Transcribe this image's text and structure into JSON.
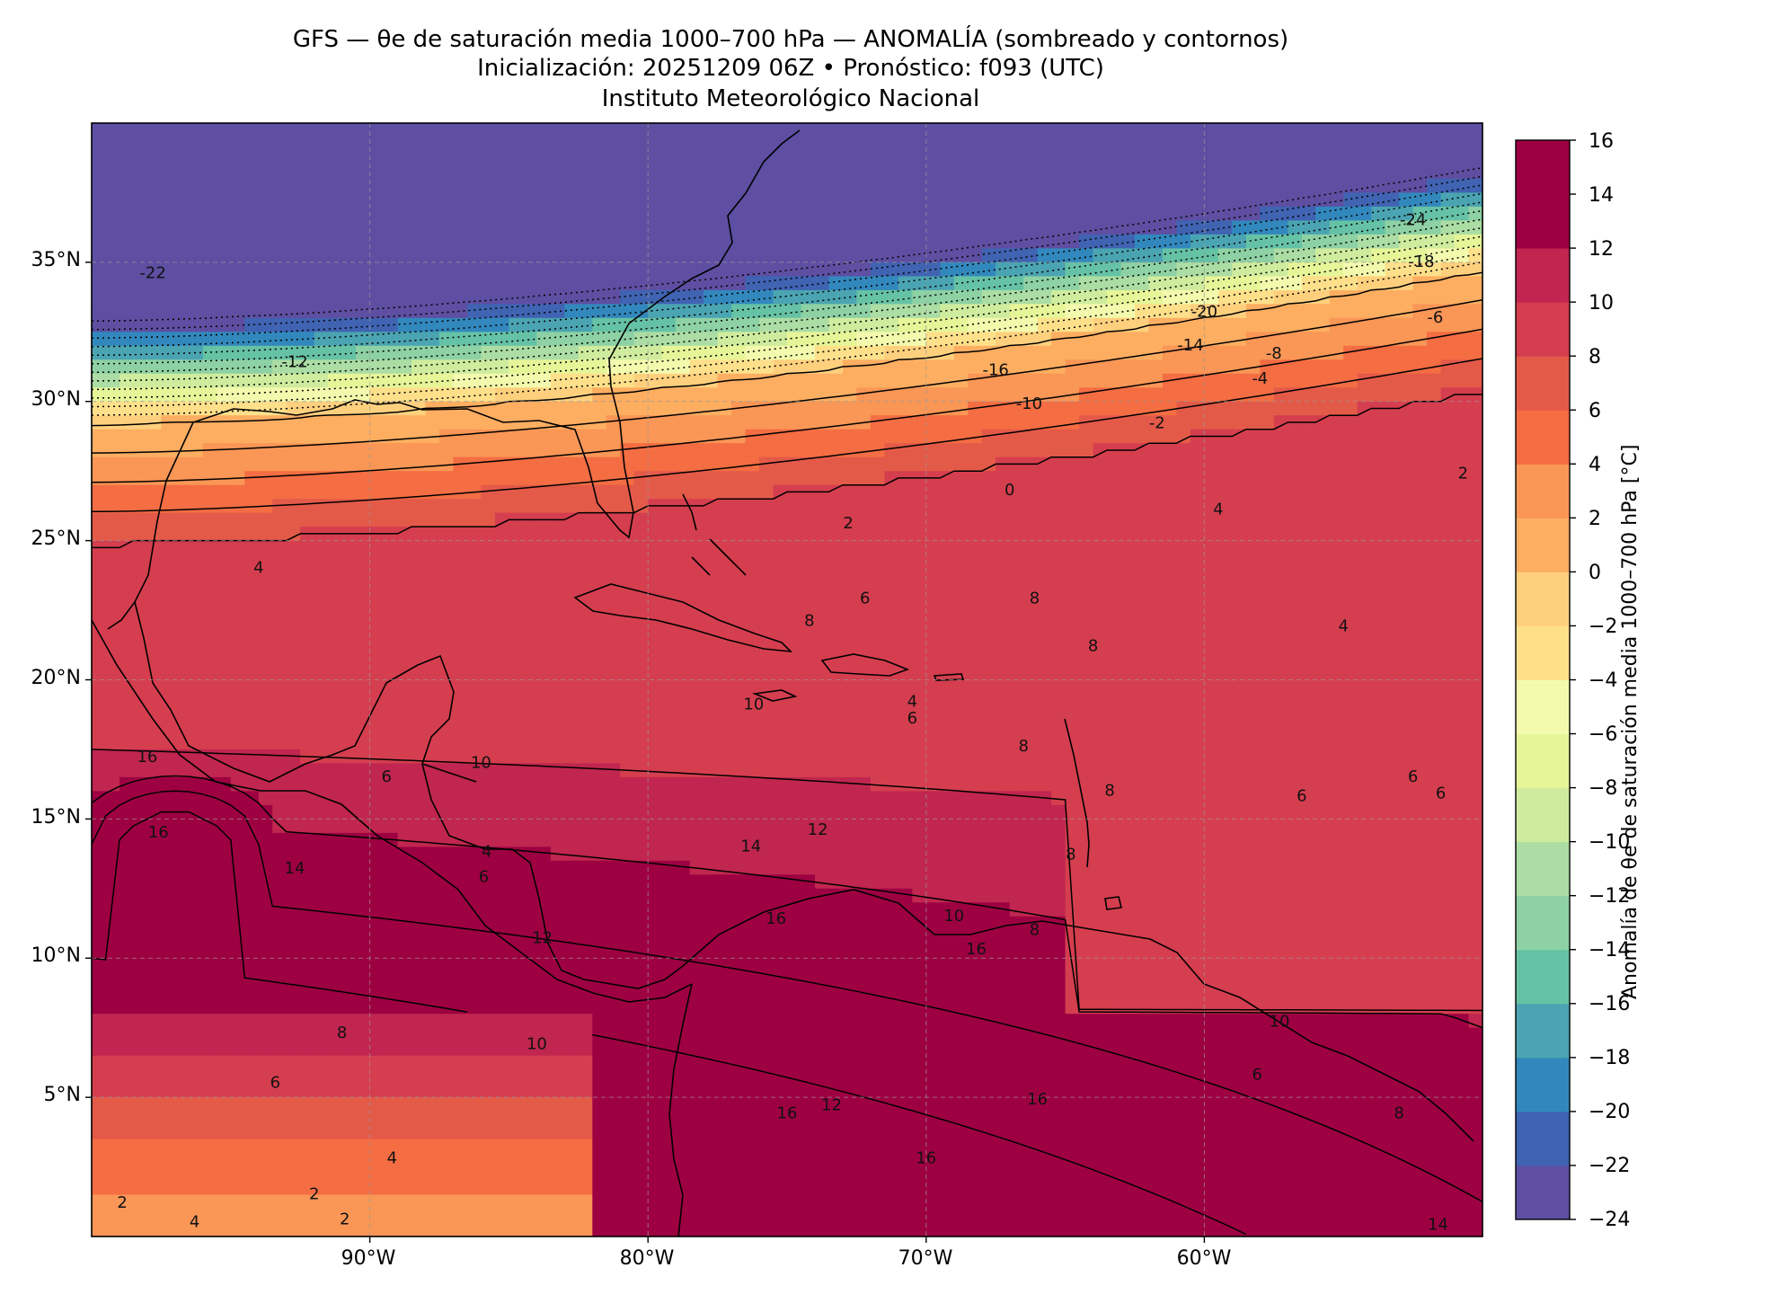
{
  "title": {
    "line1": "GFS — θe de saturación media 1000–700 hPa — ANOMALÍA (sombreado y contornos)",
    "line2": "Inicialización: 20251209 06Z   •   Pronóstico: f093 (UTC)",
    "line3": "Instituto Meteorológico Nacional"
  },
  "map": {
    "lon_range": [
      -100,
      -50
    ],
    "lat_range": [
      0,
      40
    ],
    "lat_ticks": [
      "35°N",
      "30°N",
      "25°N",
      "20°N",
      "15°N",
      "10°N",
      "5°N"
    ],
    "lon_ticks": [
      "90°W",
      "80°W",
      "70°W",
      "60°W"
    ],
    "gridlines": true
  },
  "colorbar": {
    "label": "Anomalía de θe de saturación media 1000–700 hPa [°C]",
    "levels": [
      -24,
      -22,
      -20,
      -18,
      -16,
      -14,
      -12,
      -10,
      -8,
      -6,
      -4,
      -2,
      0,
      2,
      4,
      6,
      8,
      10,
      12,
      14,
      16
    ],
    "tick_labels": [
      "16",
      "14",
      "12",
      "10",
      "8",
      "6",
      "4",
      "2",
      "0",
      "−2",
      "−4",
      "−6",
      "−8",
      "−10",
      "−12",
      "−14",
      "−16",
      "−18",
      "−20",
      "−22",
      "−24"
    ],
    "colors": [
      "#5e4fa2",
      "#4063b2",
      "#3288bd",
      "#4ba4b1",
      "#66c2a5",
      "#8dd1a4",
      "#abdda4",
      "#cfec9e",
      "#e6f598",
      "#f3faad",
      "#fee08b",
      "#fed07e",
      "#fdae61",
      "#fa9656",
      "#f46d43",
      "#e45a49",
      "#d53e4f",
      "#c0264f",
      "#9e0142",
      "#9e0142"
    ]
  },
  "contour_labels": [
    {
      "text": "-24",
      "lon": -52.5,
      "lat": 36.5
    },
    {
      "text": "-22",
      "lon": -97.8,
      "lat": 34.6
    },
    {
      "text": "-20",
      "lon": -60.0,
      "lat": 33.2
    },
    {
      "text": "-18",
      "lon": -52.2,
      "lat": 35.0
    },
    {
      "text": "-16",
      "lon": -67.5,
      "lat": 31.1
    },
    {
      "text": "-14",
      "lon": -60.5,
      "lat": 32.0
    },
    {
      "text": "-12",
      "lon": -92.7,
      "lat": 31.4
    },
    {
      "text": "-10",
      "lon": -66.3,
      "lat": 29.9
    },
    {
      "text": "-8",
      "lon": -57.5,
      "lat": 31.7
    },
    {
      "text": "-6",
      "lon": -51.7,
      "lat": 33.0
    },
    {
      "text": "-4",
      "lon": -58.0,
      "lat": 30.8
    },
    {
      "text": "-2",
      "lon": -61.7,
      "lat": 29.2
    },
    {
      "text": "0",
      "lon": -67.0,
      "lat": 26.8
    },
    {
      "text": "2",
      "lon": -50.7,
      "lat": 27.4
    },
    {
      "text": "2",
      "lon": -72.8,
      "lat": 25.6
    },
    {
      "text": "4",
      "lon": -94.0,
      "lat": 24.0
    },
    {
      "text": "4",
      "lon": -59.5,
      "lat": 26.1
    },
    {
      "text": "4",
      "lon": -55.0,
      "lat": 21.9
    },
    {
      "text": "6",
      "lon": -72.2,
      "lat": 22.9
    },
    {
      "text": "8",
      "lon": -66.1,
      "lat": 22.9
    },
    {
      "text": "8",
      "lon": -74.2,
      "lat": 22.1
    },
    {
      "text": "8",
      "lon": -64.0,
      "lat": 21.2
    },
    {
      "text": "10",
      "lon": -76.2,
      "lat": 19.1
    },
    {
      "text": "4",
      "lon": -70.5,
      "lat": 19.2
    },
    {
      "text": "6",
      "lon": -70.5,
      "lat": 18.6
    },
    {
      "text": "8",
      "lon": -66.5,
      "lat": 17.6
    },
    {
      "text": "8",
      "lon": -63.4,
      "lat": 16.0
    },
    {
      "text": "6",
      "lon": -56.5,
      "lat": 15.8
    },
    {
      "text": "6",
      "lon": -52.5,
      "lat": 16.5
    },
    {
      "text": "6",
      "lon": -51.5,
      "lat": 15.9
    },
    {
      "text": "8",
      "lon": -64.8,
      "lat": 13.7
    },
    {
      "text": "8",
      "lon": -66.1,
      "lat": 11.0
    },
    {
      "text": "16",
      "lon": -98.0,
      "lat": 17.2
    },
    {
      "text": "16",
      "lon": -97.6,
      "lat": 14.5
    },
    {
      "text": "14",
      "lon": -92.7,
      "lat": 13.2
    },
    {
      "text": "12",
      "lon": -73.9,
      "lat": 14.6
    },
    {
      "text": "14",
      "lon": -76.3,
      "lat": 14.0
    },
    {
      "text": "16",
      "lon": -75.4,
      "lat": 11.4
    },
    {
      "text": "10",
      "lon": -69.0,
      "lat": 11.5
    },
    {
      "text": "16",
      "lon": -68.2,
      "lat": 10.3
    },
    {
      "text": "12",
      "lon": -83.8,
      "lat": 10.7
    },
    {
      "text": "10",
      "lon": -86.0,
      "lat": 17.0
    },
    {
      "text": "6",
      "lon": -89.4,
      "lat": 16.5
    },
    {
      "text": "4",
      "lon": -85.8,
      "lat": 13.8
    },
    {
      "text": "6",
      "lon": -85.9,
      "lat": 12.9
    },
    {
      "text": "8",
      "lon": -91.0,
      "lat": 7.3
    },
    {
      "text": "10",
      "lon": -84.0,
      "lat": 6.9
    },
    {
      "text": "6",
      "lon": -93.4,
      "lat": 5.5
    },
    {
      "text": "10",
      "lon": -57.3,
      "lat": 7.7
    },
    {
      "text": "6",
      "lon": -58.1,
      "lat": 5.8
    },
    {
      "text": "8",
      "lon": -53.0,
      "lat": 4.4
    },
    {
      "text": "16",
      "lon": -75.0,
      "lat": 4.4
    },
    {
      "text": "12",
      "lon": -73.4,
      "lat": 4.7
    },
    {
      "text": "16",
      "lon": -66.0,
      "lat": 4.9
    },
    {
      "text": "16",
      "lon": -70.0,
      "lat": 2.8
    },
    {
      "text": "4",
      "lon": -89.2,
      "lat": 2.8
    },
    {
      "text": "2",
      "lon": -92.0,
      "lat": 1.5
    },
    {
      "text": "2",
      "lon": -90.9,
      "lat": 0.6
    },
    {
      "text": "2",
      "lon": -98.9,
      "lat": 1.2
    },
    {
      "text": "4",
      "lon": -96.3,
      "lat": 0.5
    },
    {
      "text": "14",
      "lon": -51.6,
      "lat": 0.4
    }
  ]
}
